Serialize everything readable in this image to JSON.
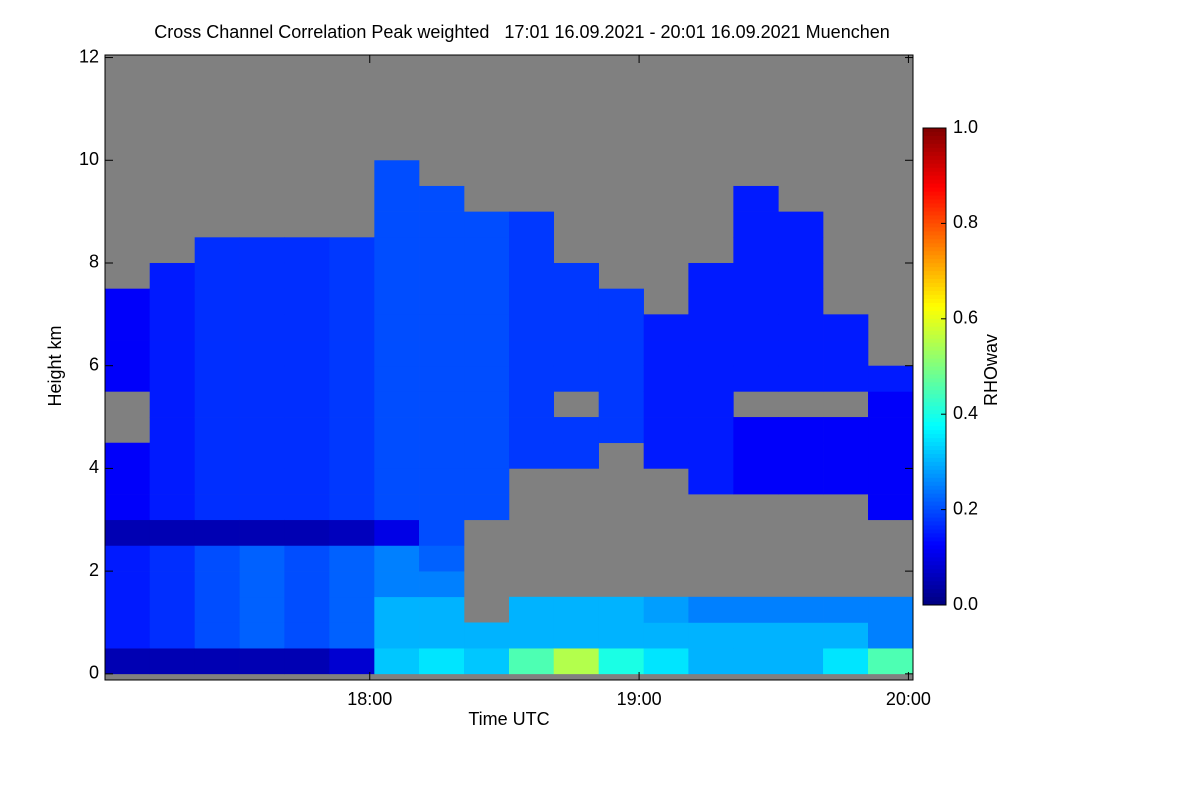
{
  "chart_data": {
    "type": "heatmap",
    "title": "Cross Channel Correlation Peak weighted   17:01 16.09.2021 - 20:01 16.09.2021 Muenchen",
    "xlabel": "Time UTC",
    "ylabel": "Height km",
    "colormap": "jet",
    "null_color": "#808080",
    "x_edges": [
      17.017,
      17.183,
      17.35,
      17.517,
      17.683,
      17.85,
      18.017,
      18.183,
      18.35,
      18.517,
      18.683,
      18.85,
      19.017,
      19.183,
      19.35,
      19.517,
      19.683,
      19.85,
      20.017
    ],
    "y_edges": [
      0,
      0.5,
      1,
      1.5,
      2,
      2.5,
      3,
      3.5,
      4,
      4.5,
      5,
      5.5,
      6,
      6.5,
      7,
      7.5,
      8,
      8.5,
      9,
      9.5,
      10,
      10.5,
      11,
      11.5,
      12
    ],
    "values": [
      [
        0.05,
        0.15,
        0.15,
        0.15,
        0.15,
        0.05,
        0.12,
        0.12,
        0.12,
        null,
        null,
        0.12,
        0.12,
        0.12,
        0.12,
        null,
        null,
        null,
        null,
        null,
        null,
        null,
        null,
        null
      ],
      [
        0.05,
        0.17,
        0.17,
        0.17,
        0.17,
        0.05,
        0.15,
        0.15,
        0.15,
        0.15,
        0.15,
        0.15,
        0.15,
        0.15,
        0.15,
        0.15,
        null,
        null,
        null,
        null,
        null,
        null,
        null,
        null
      ],
      [
        0.05,
        0.2,
        0.2,
        0.2,
        0.2,
        0.05,
        0.17,
        0.17,
        0.17,
        0.17,
        0.17,
        0.17,
        0.17,
        0.17,
        0.17,
        0.17,
        0.17,
        null,
        null,
        null,
        null,
        null,
        null,
        null
      ],
      [
        0.05,
        0.22,
        0.22,
        0.22,
        0.22,
        0.05,
        0.17,
        0.17,
        0.17,
        0.17,
        0.17,
        0.17,
        0.17,
        0.17,
        0.17,
        0.17,
        0.17,
        null,
        null,
        null,
        null,
        null,
        null,
        null
      ],
      [
        0.05,
        0.2,
        0.2,
        0.2,
        0.2,
        0.05,
        0.17,
        0.17,
        0.17,
        0.17,
        0.17,
        0.17,
        0.17,
        0.17,
        0.17,
        0.17,
        0.17,
        null,
        null,
        null,
        null,
        null,
        null,
        null
      ],
      [
        0.08,
        0.22,
        0.22,
        0.22,
        0.22,
        0.06,
        0.18,
        0.18,
        0.18,
        0.18,
        0.18,
        0.18,
        0.18,
        0.18,
        0.18,
        0.18,
        0.18,
        null,
        null,
        null,
        null,
        null,
        null,
        null
      ],
      [
        0.32,
        0.3,
        0.3,
        0.25,
        0.25,
        0.1,
        0.2,
        0.2,
        0.2,
        0.2,
        0.2,
        0.2,
        0.2,
        0.2,
        0.2,
        0.2,
        0.2,
        0.2,
        0.2,
        0.2,
        null,
        null,
        null,
        null
      ],
      [
        0.35,
        0.3,
        0.3,
        0.25,
        0.22,
        0.2,
        0.2,
        0.2,
        0.2,
        0.2,
        0.2,
        0.2,
        0.2,
        0.2,
        0.2,
        0.2,
        0.2,
        0.2,
        0.2,
        null,
        null,
        null,
        null,
        null
      ],
      [
        0.32,
        0.3,
        null,
        null,
        null,
        null,
        0.2,
        0.2,
        0.2,
        0.2,
        0.2,
        0.2,
        0.2,
        0.2,
        0.2,
        0.2,
        0.2,
        0.2,
        null,
        null,
        null,
        null,
        null,
        null
      ],
      [
        0.45,
        0.3,
        0.3,
        null,
        null,
        null,
        null,
        null,
        0.18,
        0.18,
        0.18,
        0.18,
        0.18,
        0.18,
        0.18,
        0.18,
        0.18,
        0.18,
        null,
        null,
        null,
        null,
        null,
        null
      ],
      [
        0.55,
        0.3,
        0.3,
        null,
        null,
        null,
        null,
        null,
        0.18,
        0.18,
        null,
        0.18,
        0.18,
        0.18,
        0.18,
        0.18,
        null,
        null,
        null,
        null,
        null,
        null,
        null,
        null
      ],
      [
        0.4,
        0.3,
        0.3,
        null,
        null,
        null,
        null,
        null,
        null,
        0.18,
        0.18,
        0.18,
        0.18,
        0.18,
        0.18,
        null,
        null,
        null,
        null,
        null,
        null,
        null,
        null,
        null
      ],
      [
        0.35,
        0.3,
        0.28,
        null,
        null,
        null,
        null,
        null,
        0.15,
        0.15,
        0.15,
        0.15,
        0.15,
        0.15,
        null,
        null,
        null,
        null,
        null,
        null,
        null,
        null,
        null,
        null
      ],
      [
        0.3,
        0.3,
        0.25,
        null,
        null,
        null,
        null,
        0.15,
        0.15,
        0.15,
        0.15,
        0.15,
        0.15,
        0.15,
        0.15,
        0.15,
        null,
        null,
        null,
        null,
        null,
        null,
        null,
        null
      ],
      [
        0.3,
        0.3,
        0.25,
        null,
        null,
        null,
        null,
        0.12,
        0.12,
        0.12,
        null,
        0.15,
        0.15,
        0.15,
        0.15,
        0.15,
        0.15,
        0.15,
        0.15,
        null,
        null,
        null,
        null,
        null
      ],
      [
        0.3,
        0.3,
        0.25,
        null,
        null,
        null,
        null,
        0.12,
        0.12,
        0.12,
        null,
        0.15,
        0.15,
        0.15,
        0.15,
        0.15,
        0.15,
        0.15,
        null,
        null,
        null,
        null,
        null,
        null
      ],
      [
        0.35,
        0.3,
        0.25,
        null,
        null,
        null,
        null,
        0.12,
        0.12,
        0.12,
        null,
        0.15,
        0.15,
        0.15,
        null,
        null,
        null,
        null,
        null,
        null,
        null,
        null,
        null,
        null
      ],
      [
        0.45,
        0.25,
        0.25,
        null,
        null,
        null,
        0.12,
        0.12,
        0.12,
        0.12,
        0.12,
        0.15,
        null,
        null,
        null,
        null,
        null,
        null,
        null,
        null,
        null,
        null,
        null,
        null
      ]
    ],
    "xlim": [
      17.017,
      20.017
    ],
    "ylim": [
      -0.12,
      12.05
    ],
    "xticks": [
      {
        "value": 18,
        "label": "18:00"
      },
      {
        "value": 19,
        "label": "19:00"
      },
      {
        "value": 20,
        "label": "20:00"
      }
    ],
    "yticks": [
      0,
      2,
      4,
      6,
      8,
      10,
      12
    ],
    "colorbar": {
      "label": "RHOwav",
      "lim": [
        0,
        1
      ],
      "ticks": [
        {
          "value": 0,
          "label": "0.0"
        },
        {
          "value": 0.2,
          "label": "0.2"
        },
        {
          "value": 0.4,
          "label": "0.4"
        },
        {
          "value": 0.6,
          "label": "0.6"
        },
        {
          "value": 0.8,
          "label": "0.8"
        },
        {
          "value": 1,
          "label": "1.0"
        }
      ]
    }
  }
}
